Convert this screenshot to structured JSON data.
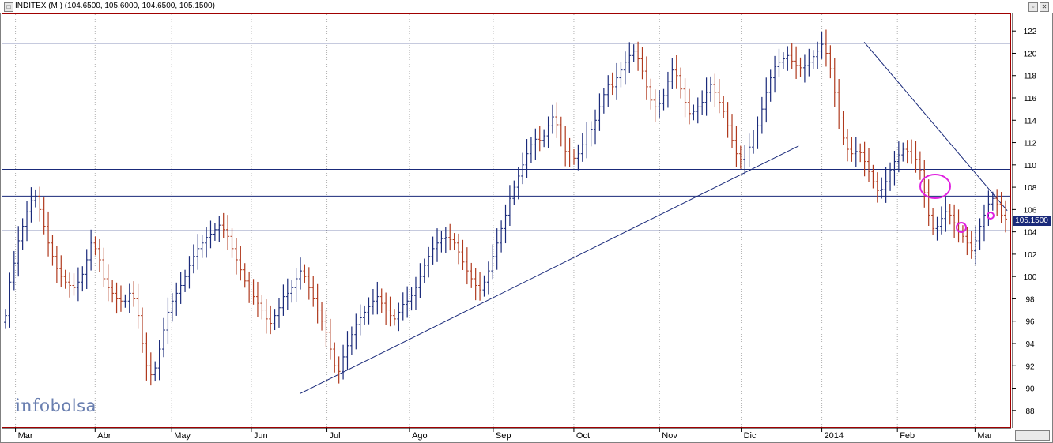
{
  "header": {
    "title": "INDITEX (M ) (104.6500, 105.6000, 104.6500, 105.1500)"
  },
  "logo": {
    "text_left": "info",
    "text_right": "bolsa"
  },
  "colors": {
    "up": "#1a2a7a",
    "down": "#b03a1e",
    "line": "#1a2a7a",
    "marker": "#e020e0",
    "grid": "#b0b0b0"
  },
  "chart_data": {
    "type": "ohlc",
    "title": "INDITEX (M )",
    "ylim": [
      86.5,
      123.5
    ],
    "yticks": [
      88,
      90,
      92,
      94,
      96,
      98,
      100,
      102,
      104,
      106,
      108,
      110,
      112,
      114,
      116,
      118,
      120,
      122
    ],
    "x_labels": [
      "Mar",
      "Abr",
      "May",
      "Jun",
      "Jul",
      "Ago",
      "Sep",
      "Oct",
      "Nov",
      "Dic",
      "2014",
      "Feb",
      "Mar"
    ],
    "last_price": "105.1500",
    "horizontal_levels": [
      120.9,
      109.6,
      107.2,
      104.1
    ],
    "trendlines": [
      {
        "from": [
          0.295,
          89.5
        ],
        "to": [
          0.79,
          111.7
        ]
      },
      {
        "from": [
          0.855,
          121.0
        ],
        "to": [
          0.997,
          105.9
        ]
      }
    ],
    "closes": [
      96.5,
      99.5,
      101.2,
      103.2,
      104.5,
      105.8,
      106.8,
      107.2,
      106.0,
      104.5,
      103.0,
      101.8,
      100.7,
      100.0,
      99.5,
      99.2,
      99.0,
      99.5,
      100.2,
      101.5,
      103.0,
      102.5,
      101.5,
      99.8,
      99.0,
      98.5,
      98.0,
      97.8,
      97.8,
      98.5,
      98.0,
      96.5,
      94.0,
      92.0,
      91.2,
      91.8,
      93.5,
      95.2,
      96.8,
      97.8,
      98.5,
      99.2,
      100.0,
      101.0,
      101.8,
      102.5,
      103.0,
      103.5,
      103.8,
      104.2,
      104.6,
      104.2,
      103.6,
      102.5,
      101.5,
      100.6,
      99.6,
      98.7,
      98.2,
      97.6,
      97.0,
      96.2,
      95.8,
      96.5,
      97.2,
      98.2,
      98.5,
      99.0,
      99.8,
      100.5,
      100.0,
      99.0,
      98.0,
      97.0,
      96.0,
      95.0,
      93.5,
      92.0,
      91.5,
      92.8,
      93.8,
      94.8,
      95.7,
      96.3,
      96.8,
      97.3,
      97.8,
      98.2,
      97.6,
      97.0,
      96.5,
      96.2,
      96.8,
      97.5,
      97.8,
      98.3,
      99.0,
      100.0,
      101.0,
      101.8,
      102.5,
      103.0,
      103.4,
      103.5,
      103.3,
      103.0,
      102.2,
      101.3,
      100.5,
      99.8,
      99.2,
      98.8,
      99.5,
      100.5,
      101.8,
      103.0,
      104.3,
      105.5,
      107.0,
      108.0,
      109.0,
      110.0,
      111.0,
      111.8,
      112.3,
      112.2,
      112.6,
      113.5,
      114.3,
      113.6,
      112.5,
      111.2,
      110.8,
      110.6,
      111.0,
      111.8,
      112.5,
      113.2,
      114.0,
      115.2,
      116.3,
      117.2,
      117.0,
      117.8,
      118.5,
      119.2,
      119.8,
      120.2,
      119.5,
      118.4,
      117.0,
      115.8,
      115.2,
      115.5,
      116.2,
      117.5,
      118.5,
      118.0,
      116.8,
      115.6,
      114.6,
      114.8,
      115.2,
      115.6,
      116.5,
      117.2,
      116.5,
      115.6,
      114.8,
      113.5,
      112.2,
      111.0,
      110.5,
      110.8,
      111.6,
      112.5,
      113.5,
      115.0,
      116.5,
      117.8,
      118.8,
      119.2,
      119.5,
      119.8,
      119.3,
      118.9,
      118.7,
      118.9,
      119.2,
      119.7,
      120.2,
      120.8,
      120.0,
      118.6,
      116.5,
      114.2,
      112.4,
      111.4,
      111.0,
      111.2,
      111.1,
      110.3,
      109.4,
      108.5,
      107.7,
      107.8,
      108.5,
      109.5,
      110.3,
      110.9,
      111.4,
      111.2,
      110.8,
      110.5,
      109.5,
      107.5,
      105.5,
      104.3,
      104.5,
      105.2,
      105.8,
      105.5,
      104.8,
      104.0,
      103.6,
      103.0,
      102.3,
      103.2,
      104.5,
      105.5,
      106.5,
      107.0,
      106.5,
      105.5,
      105.15
    ]
  }
}
